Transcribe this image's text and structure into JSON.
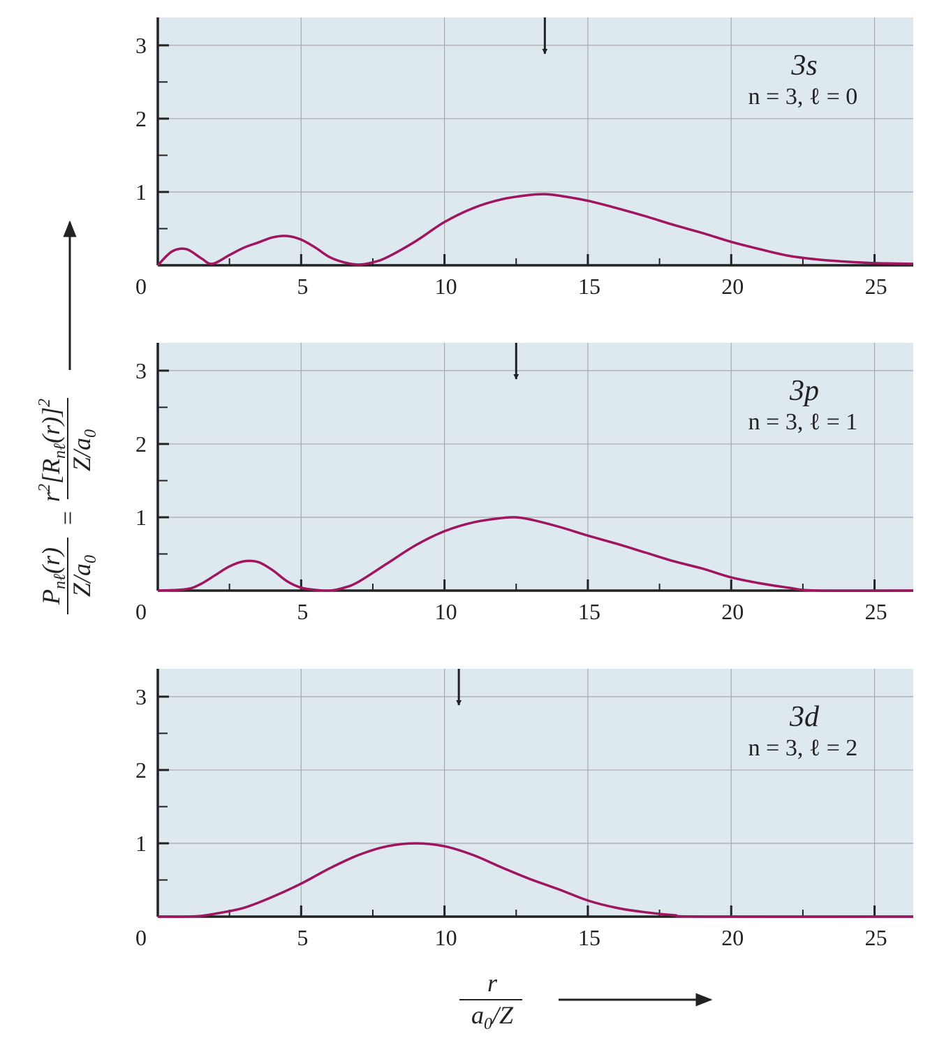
{
  "chart_data": [
    {
      "type": "line",
      "title": "3s",
      "subtitle": "n = 3, ℓ = 0",
      "color": "#a0155f",
      "arrow_x": 13.5,
      "x": [
        0,
        0.5,
        1,
        1.5,
        1.9,
        2.5,
        3,
        3.5,
        4,
        4.5,
        5,
        5.5,
        6,
        6.5,
        7,
        7.5,
        8,
        9,
        10,
        11,
        12,
        13,
        13.5,
        14,
        15,
        16,
        17,
        18,
        19,
        20,
        21,
        22,
        23,
        24,
        25,
        26.35
      ],
      "values": [
        0,
        0.19,
        0.22,
        0.1,
        0.02,
        0.14,
        0.24,
        0.31,
        0.38,
        0.4,
        0.35,
        0.24,
        0.11,
        0.04,
        0.01,
        0.04,
        0.11,
        0.33,
        0.59,
        0.78,
        0.9,
        0.96,
        0.97,
        0.95,
        0.88,
        0.78,
        0.67,
        0.55,
        0.44,
        0.32,
        0.22,
        0.13,
        0.08,
        0.05,
        0.03,
        0.02
      ],
      "xlim": [
        0,
        26.35
      ],
      "ylim": [
        0,
        3.38
      ],
      "xticks": [
        0,
        5,
        10,
        15,
        20,
        25
      ],
      "xminor": [
        2.5,
        7.5,
        12.5,
        17.5,
        22.5
      ],
      "yticks": [
        1,
        2,
        3
      ],
      "yminor": [
        0.5,
        1.5,
        2.5
      ],
      "grid": true
    },
    {
      "type": "line",
      "title": "3p",
      "subtitle": "n = 3, ℓ = 1",
      "color": "#a0155f",
      "arrow_x": 12.5,
      "x": [
        0,
        1,
        1.5,
        2,
        2.5,
        3,
        3.5,
        4,
        4.5,
        5,
        5.5,
        6,
        6.5,
        7,
        8,
        9,
        10,
        11,
        12,
        12.5,
        13,
        14,
        15,
        16,
        17,
        18,
        19,
        20,
        21,
        22,
        23,
        26.35
      ],
      "values": [
        0,
        0.02,
        0.09,
        0.21,
        0.33,
        0.4,
        0.39,
        0.28,
        0.13,
        0.04,
        0.01,
        0,
        0.04,
        0.12,
        0.37,
        0.62,
        0.81,
        0.93,
        0.99,
        1.0,
        0.97,
        0.87,
        0.75,
        0.64,
        0.52,
        0.4,
        0.3,
        0.18,
        0.1,
        0.04,
        0,
        0
      ],
      "xlim": [
        0,
        26.35
      ],
      "ylim": [
        0,
        3.38
      ],
      "xticks": [
        0,
        5,
        10,
        15,
        20,
        25
      ],
      "xminor": [
        2.5,
        7.5,
        12.5,
        17.5,
        22.5
      ],
      "yticks": [
        1,
        2,
        3
      ],
      "yminor": [
        0.5,
        1.5,
        2.5
      ],
      "grid": true
    },
    {
      "type": "line",
      "title": "3d",
      "subtitle": "n = 3, ℓ = 2",
      "color": "#a0155f",
      "arrow_x": 10.5,
      "x": [
        0,
        1,
        1.5,
        2,
        3,
        4,
        5,
        6,
        7,
        8,
        9,
        10,
        11,
        12,
        13,
        14,
        15,
        16,
        17,
        18,
        19,
        26.35
      ],
      "values": [
        0,
        0,
        0.01,
        0.04,
        0.12,
        0.27,
        0.45,
        0.66,
        0.84,
        0.96,
        1.0,
        0.96,
        0.84,
        0.67,
        0.51,
        0.37,
        0.22,
        0.12,
        0.06,
        0.02,
        0,
        0
      ],
      "xlim": [
        0,
        26.35
      ],
      "ylim": [
        0,
        3.38
      ],
      "xticks": [
        0,
        5,
        10,
        15,
        20,
        25
      ],
      "xminor": [
        2.5,
        7.5,
        12.5,
        17.5,
        22.5
      ],
      "yticks": [
        1,
        2,
        3
      ],
      "yminor": [
        0.5,
        1.5,
        2.5
      ],
      "grid": true
    }
  ],
  "ylabel": {
    "left_num": [
      "P",
      "nℓ",
      "(r)"
    ],
    "left_den": [
      "Z/a",
      "0"
    ],
    "eq": "=",
    "right_num": [
      "r",
      "2",
      "[R",
      "nℓ",
      "(r)]",
      "2"
    ],
    "right_den": [
      "Z/a",
      "0"
    ]
  },
  "xlabel": {
    "num": "r",
    "den": [
      "a",
      "0",
      "/Z"
    ]
  }
}
